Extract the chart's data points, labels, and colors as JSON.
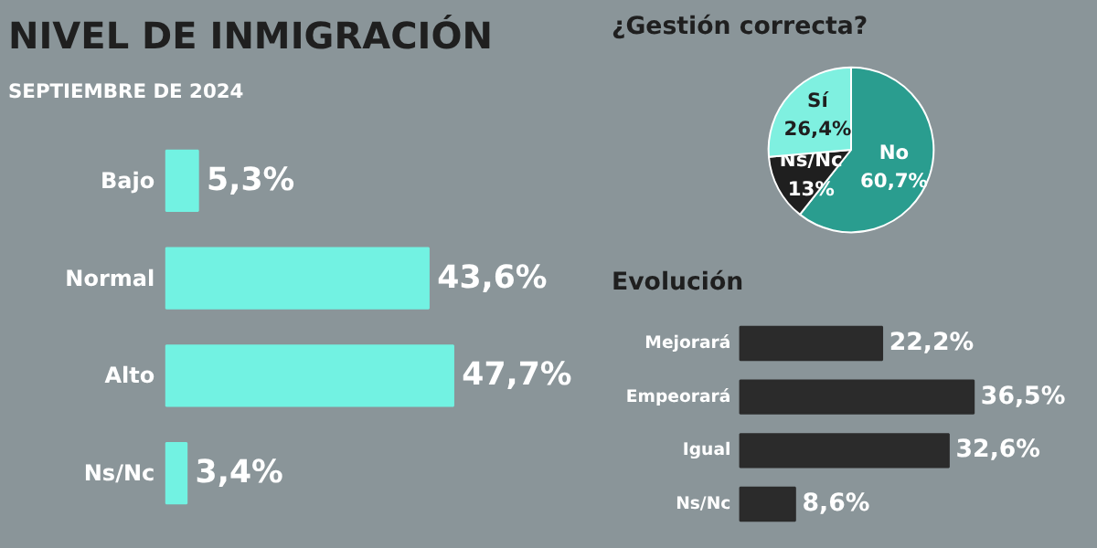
{
  "chart_data": [
    {
      "type": "bar",
      "orientation": "horizontal",
      "title": "NIVEL DE INMIGRACIÓN",
      "annotations": [
        "SEPTIEMBRE DE 2024"
      ],
      "categories": [
        "Bajo",
        "Normal",
        "Alto",
        "Ns/Nc"
      ],
      "values": [
        5.3,
        43.6,
        47.7,
        3.4
      ],
      "value_labels": [
        "5,3%",
        "43,6%",
        "47,7%",
        "3,4%"
      ],
      "color": "#72f2e2"
    },
    {
      "type": "pie",
      "title": "¿Gestión correcta?",
      "categories": [
        "No",
        "Ns/Nc",
        "Sí"
      ],
      "values": [
        60.7,
        13,
        26.4
      ],
      "value_labels": [
        "60,7%",
        "13%",
        "26,4%"
      ],
      "colors": [
        "#2a9d8f",
        "#1f1f1f",
        "#7ff0e0"
      ]
    },
    {
      "type": "bar",
      "orientation": "horizontal",
      "title": "Evolución",
      "categories": [
        "Mejorará",
        "Empeorará",
        "Igual",
        "Ns/Nc"
      ],
      "values": [
        22.2,
        36.5,
        32.6,
        8.6
      ],
      "value_labels": [
        "22,2%",
        "36,5%",
        "32,6%",
        "8,6%"
      ],
      "color": "#2b2b2b"
    }
  ]
}
